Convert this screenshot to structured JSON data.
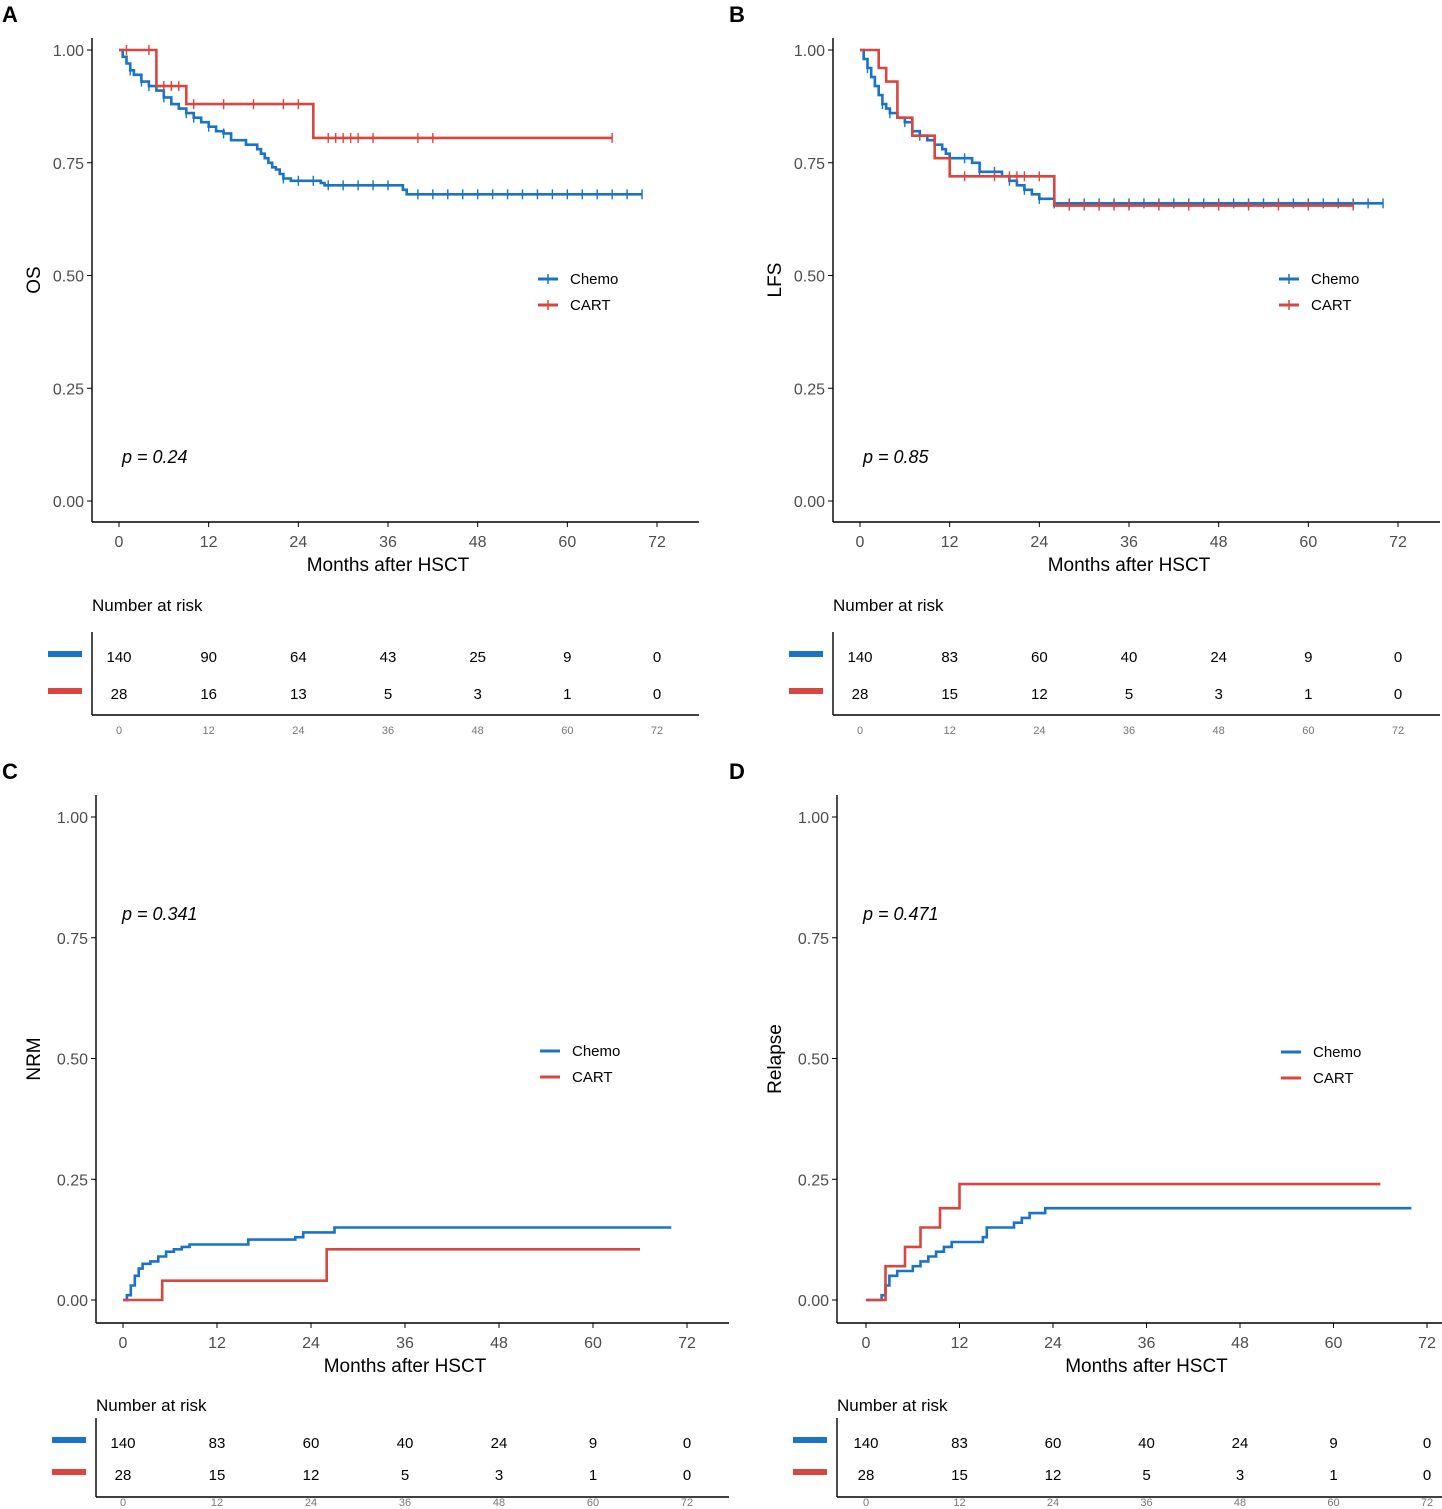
{
  "colors": {
    "chemo": "#1a73c6",
    "cart": "#d9463f",
    "axis": "#000000",
    "tick": "#4d4d4d"
  },
  "chart_data": [
    {
      "panel": "A",
      "type": "line",
      "step": true,
      "ylabel": "OS",
      "xlabel": "Months after HSCT",
      "xlim": [
        0,
        72
      ],
      "ylim": [
        0,
        1
      ],
      "xticks": [
        "0",
        "12",
        "24",
        "36",
        "48",
        "60",
        "72"
      ],
      "yticks": [
        "0.00",
        "0.25",
        "0.50",
        "0.75",
        "1.00"
      ],
      "p_value": "p = 0.24",
      "legend_position": "right",
      "censor_marks": true,
      "series": [
        {
          "name": "Chemo",
          "color_key": "chemo",
          "points": [
            [
              0,
              1.0
            ],
            [
              0.5,
              0.985
            ],
            [
              1,
              0.97
            ],
            [
              1.5,
              0.955
            ],
            [
              2,
              0.945
            ],
            [
              3,
              0.93
            ],
            [
              4,
              0.92
            ],
            [
              5,
              0.91
            ],
            [
              6,
              0.895
            ],
            [
              7,
              0.88
            ],
            [
              8,
              0.87
            ],
            [
              9,
              0.86
            ],
            [
              10,
              0.85
            ],
            [
              11,
              0.84
            ],
            [
              12,
              0.83
            ],
            [
              13,
              0.82
            ],
            [
              14,
              0.815
            ],
            [
              15,
              0.8
            ],
            [
              17,
              0.79
            ],
            [
              18.5,
              0.78
            ],
            [
              19,
              0.77
            ],
            [
              19.5,
              0.76
            ],
            [
              20,
              0.75
            ],
            [
              20.5,
              0.74
            ],
            [
              21,
              0.735
            ],
            [
              21.5,
              0.725
            ],
            [
              22,
              0.715
            ],
            [
              23,
              0.71
            ],
            [
              27,
              0.705
            ],
            [
              27.5,
              0.7
            ],
            [
              38,
              0.69
            ],
            [
              38.5,
              0.68
            ],
            [
              70,
              0.68
            ]
          ],
          "censor": [
            1.5,
            3,
            4,
            6,
            9,
            10,
            12,
            14,
            22,
            24,
            26,
            28,
            30,
            32,
            34,
            36,
            40,
            42,
            44,
            46,
            48,
            50,
            52,
            54,
            56,
            58,
            60,
            62,
            64,
            66,
            68,
            70
          ]
        },
        {
          "name": "CART",
          "color_key": "cart",
          "points": [
            [
              0,
              1.0
            ],
            [
              5,
              1.0
            ],
            [
              5,
              0.92
            ],
            [
              9,
              0.92
            ],
            [
              9,
              0.88
            ],
            [
              26,
              0.88
            ],
            [
              26,
              0.805
            ],
            [
              66,
              0.805
            ]
          ],
          "censor": [
            1,
            4,
            6,
            7,
            8,
            10,
            14,
            18,
            22,
            24,
            28,
            29,
            30,
            31,
            32,
            34,
            40,
            42,
            66
          ]
        }
      ],
      "risk_table": {
        "title": "Number at risk",
        "times": [
          "0",
          "12",
          "24",
          "36",
          "48",
          "60",
          "72"
        ],
        "rows": [
          {
            "group": "Chemo",
            "counts": [
              "140",
              "90",
              "64",
              "43",
              "25",
              "9",
              "0"
            ]
          },
          {
            "group": "CART",
            "counts": [
              "28",
              "16",
              "13",
              "5",
              "3",
              "1",
              "0"
            ]
          }
        ]
      }
    },
    {
      "panel": "B",
      "type": "line",
      "step": true,
      "ylabel": "LFS",
      "xlabel": "Months after HSCT",
      "xlim": [
        0,
        72
      ],
      "ylim": [
        0,
        1
      ],
      "xticks": [
        "0",
        "12",
        "24",
        "36",
        "48",
        "60",
        "72"
      ],
      "yticks": [
        "0.00",
        "0.25",
        "0.50",
        "0.75",
        "1.00"
      ],
      "p_value": "p = 0.85",
      "legend_position": "right",
      "censor_marks": true,
      "series": [
        {
          "name": "Chemo",
          "color_key": "chemo",
          "points": [
            [
              0,
              1.0
            ],
            [
              0.5,
              0.98
            ],
            [
              1,
              0.96
            ],
            [
              1.5,
              0.94
            ],
            [
              2,
              0.92
            ],
            [
              2.5,
              0.9
            ],
            [
              3,
              0.88
            ],
            [
              3.5,
              0.87
            ],
            [
              4,
              0.86
            ],
            [
              5,
              0.85
            ],
            [
              6,
              0.84
            ],
            [
              7,
              0.82
            ],
            [
              8,
              0.81
            ],
            [
              9,
              0.8
            ],
            [
              10,
              0.79
            ],
            [
              11,
              0.78
            ],
            [
              11.5,
              0.77
            ],
            [
              12,
              0.76
            ],
            [
              15,
              0.75
            ],
            [
              16,
              0.73
            ],
            [
              19,
              0.72
            ],
            [
              20,
              0.71
            ],
            [
              21,
              0.7
            ],
            [
              22,
              0.69
            ],
            [
              23,
              0.68
            ],
            [
              24,
              0.67
            ],
            [
              26,
              0.66
            ],
            [
              70,
              0.66
            ]
          ],
          "censor": [
            1,
            3,
            4,
            6,
            8,
            10,
            14,
            16,
            18,
            20,
            22,
            24,
            26,
            28,
            30,
            32,
            34,
            36,
            38,
            40,
            42,
            44,
            46,
            48,
            50,
            52,
            54,
            56,
            58,
            60,
            62,
            64,
            66,
            68,
            70
          ]
        },
        {
          "name": "CART",
          "color_key": "cart",
          "points": [
            [
              0,
              1.0
            ],
            [
              2.5,
              1.0
            ],
            [
              2.5,
              0.96
            ],
            [
              3.5,
              0.96
            ],
            [
              3.5,
              0.93
            ],
            [
              5,
              0.93
            ],
            [
              5,
              0.85
            ],
            [
              7,
              0.85
            ],
            [
              7,
              0.81
            ],
            [
              10,
              0.81
            ],
            [
              10,
              0.76
            ],
            [
              12,
              0.76
            ],
            [
              12,
              0.72
            ],
            [
              26,
              0.72
            ],
            [
              26,
              0.655
            ],
            [
              66,
              0.655
            ]
          ],
          "censor": [
            14,
            18,
            20,
            21,
            22,
            24,
            28,
            30,
            32,
            34,
            36,
            40,
            44,
            48,
            52,
            56,
            60,
            66
          ]
        }
      ],
      "risk_table": {
        "title": "Number at risk",
        "times": [
          "0",
          "12",
          "24",
          "36",
          "48",
          "60",
          "72"
        ],
        "rows": [
          {
            "group": "Chemo",
            "counts": [
              "140",
              "83",
              "60",
              "40",
              "24",
              "9",
              "0"
            ]
          },
          {
            "group": "CART",
            "counts": [
              "28",
              "15",
              "12",
              "5",
              "3",
              "1",
              "0"
            ]
          }
        ]
      }
    },
    {
      "panel": "C",
      "type": "line",
      "step": true,
      "ylabel": "NRM",
      "xlabel": "Months after HSCT",
      "xlim": [
        0,
        72
      ],
      "ylim": [
        0,
        1
      ],
      "xticks": [
        "0",
        "12",
        "24",
        "36",
        "48",
        "60",
        "72"
      ],
      "yticks": [
        "0.00",
        "0.25",
        "0.50",
        "0.75",
        "1.00"
      ],
      "p_value": "p = 0.341",
      "legend_position": "right",
      "censor_marks": false,
      "series": [
        {
          "name": "Chemo",
          "color_key": "chemo",
          "points": [
            [
              0,
              0.0
            ],
            [
              0.5,
              0.01
            ],
            [
              1,
              0.03
            ],
            [
              1.5,
              0.05
            ],
            [
              2,
              0.065
            ],
            [
              2.5,
              0.075
            ],
            [
              3.5,
              0.08
            ],
            [
              4.5,
              0.09
            ],
            [
              5.5,
              0.1
            ],
            [
              6.5,
              0.105
            ],
            [
              7.5,
              0.11
            ],
            [
              8.5,
              0.115
            ],
            [
              16,
              0.125
            ],
            [
              22,
              0.13
            ],
            [
              23,
              0.14
            ],
            [
              27,
              0.15
            ],
            [
              70,
              0.15
            ]
          ],
          "censor": []
        },
        {
          "name": "CART",
          "color_key": "cart",
          "points": [
            [
              0,
              0.0
            ],
            [
              5,
              0.0
            ],
            [
              5,
              0.04
            ],
            [
              26,
              0.04
            ],
            [
              26,
              0.105
            ],
            [
              66,
              0.105
            ]
          ],
          "censor": []
        }
      ],
      "risk_table": {
        "title": "Number at risk",
        "times": [
          "0",
          "12",
          "24",
          "36",
          "48",
          "60",
          "72"
        ],
        "rows": [
          {
            "group": "Chemo",
            "counts": [
              "140",
              "83",
              "60",
              "40",
              "24",
              "9",
              "0"
            ]
          },
          {
            "group": "CART",
            "counts": [
              "28",
              "15",
              "12",
              "5",
              "3",
              "1",
              "0"
            ]
          }
        ]
      }
    },
    {
      "panel": "D",
      "type": "line",
      "step": true,
      "ylabel": "Relapse",
      "xlabel": "Months after HSCT",
      "xlim": [
        0,
        72
      ],
      "ylim": [
        0,
        1
      ],
      "xticks": [
        "0",
        "12",
        "24",
        "36",
        "48",
        "60",
        "72"
      ],
      "yticks": [
        "0.00",
        "0.25",
        "0.50",
        "0.75",
        "1.00"
      ],
      "p_value": "p = 0.471",
      "legend_position": "right",
      "censor_marks": false,
      "series": [
        {
          "name": "Chemo",
          "color_key": "chemo",
          "points": [
            [
              0,
              0.0
            ],
            [
              1.5,
              0.0
            ],
            [
              2,
              0.01
            ],
            [
              2.5,
              0.03
            ],
            [
              3,
              0.05
            ],
            [
              4,
              0.06
            ],
            [
              6,
              0.07
            ],
            [
              7,
              0.08
            ],
            [
              8,
              0.09
            ],
            [
              9,
              0.1
            ],
            [
              10,
              0.11
            ],
            [
              11,
              0.12
            ],
            [
              15,
              0.13
            ],
            [
              15.5,
              0.15
            ],
            [
              19,
              0.16
            ],
            [
              20,
              0.17
            ],
            [
              21,
              0.18
            ],
            [
              23,
              0.19
            ],
            [
              70,
              0.19
            ]
          ],
          "censor": []
        },
        {
          "name": "CART",
          "color_key": "cart",
          "points": [
            [
              0,
              0.0
            ],
            [
              2.5,
              0.0
            ],
            [
              2.5,
              0.07
            ],
            [
              5,
              0.07
            ],
            [
              5,
              0.11
            ],
            [
              7,
              0.11
            ],
            [
              7,
              0.15
            ],
            [
              9.5,
              0.15
            ],
            [
              9.5,
              0.19
            ],
            [
              12,
              0.19
            ],
            [
              12,
              0.24
            ],
            [
              66,
              0.24
            ]
          ],
          "censor": []
        }
      ],
      "risk_table": {
        "title": "Number at risk",
        "times": [
          "0",
          "12",
          "24",
          "36",
          "48",
          "60",
          "72"
        ],
        "rows": [
          {
            "group": "Chemo",
            "counts": [
              "140",
              "83",
              "60",
              "40",
              "24",
              "9",
              "0"
            ]
          },
          {
            "group": "CART",
            "counts": [
              "28",
              "15",
              "12",
              "5",
              "3",
              "1",
              "0"
            ]
          }
        ]
      }
    }
  ]
}
